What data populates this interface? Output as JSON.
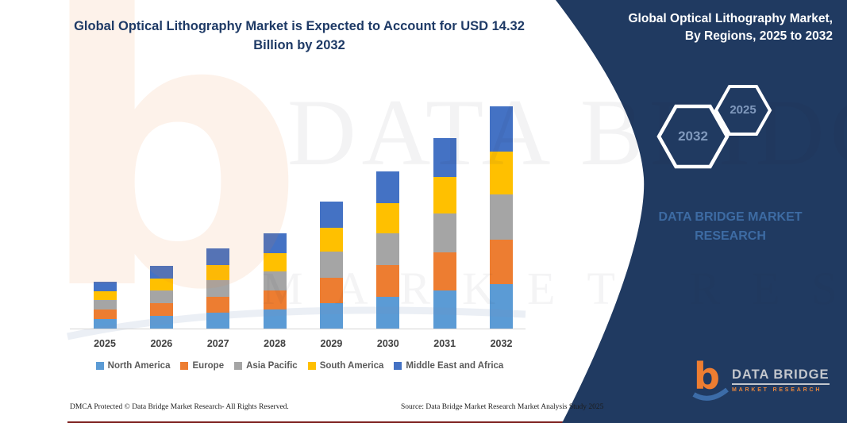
{
  "main_title": "Global Optical Lithography Market is Expected to Account for USD 14.32 Billion by 2032",
  "panel": {
    "title": "Global Optical Lithography Market, By Regions, 2025 to 2032",
    "background_color": "#203a61",
    "hexagons": [
      {
        "label": "2032"
      },
      {
        "label": "2025"
      }
    ],
    "brand_text": "DATA BRIDGE MARKET RESEARCH",
    "logo": {
      "glyph": "b",
      "name": "DATA BRIDGE",
      "subname": "MARKET RESEARCH"
    }
  },
  "chart_data": {
    "type": "bar",
    "stacked": true,
    "value_unit": "USD Billion",
    "categories": [
      "2025",
      "2026",
      "2027",
      "2028",
      "2029",
      "2030",
      "2031",
      "2032"
    ],
    "series": [
      {
        "name": "North America",
        "color": "#5B9BD5",
        "values": [
          0.62,
          0.82,
          1.04,
          1.24,
          1.64,
          2.04,
          2.46,
          2.86
        ]
      },
      {
        "name": "Europe",
        "color": "#ED7D31",
        "values": [
          0.62,
          0.82,
          1.04,
          1.24,
          1.64,
          2.04,
          2.46,
          2.86
        ]
      },
      {
        "name": "Asia Pacific",
        "color": "#A5A5A5",
        "values": [
          0.64,
          0.84,
          1.06,
          1.26,
          1.68,
          2.08,
          2.5,
          2.92
        ]
      },
      {
        "name": "South America",
        "color": "#FFC000",
        "values": [
          0.58,
          0.78,
          0.98,
          1.18,
          1.56,
          1.96,
          2.36,
          2.76
        ]
      },
      {
        "name": "Middle East and Africa",
        "color": "#4472C4",
        "values": [
          0.64,
          0.84,
          1.08,
          1.28,
          1.68,
          2.08,
          2.52,
          2.92
        ]
      }
    ],
    "totals": [
      3.1,
      4.1,
      5.2,
      6.2,
      8.2,
      10.2,
      12.3,
      14.32
    ],
    "legend_position": "bottom",
    "grid": false
  },
  "watermark": {
    "glyph": "b",
    "big_text": "DATA BRIDGE",
    "spaced_text": "MARKET RESEARCH"
  },
  "footer": {
    "left": "DMCA Protected © Data Bridge Market Research-  All Rights Reserved.",
    "right": "Source: Data Bridge Market Research  Market Analysis Study 2025"
  }
}
